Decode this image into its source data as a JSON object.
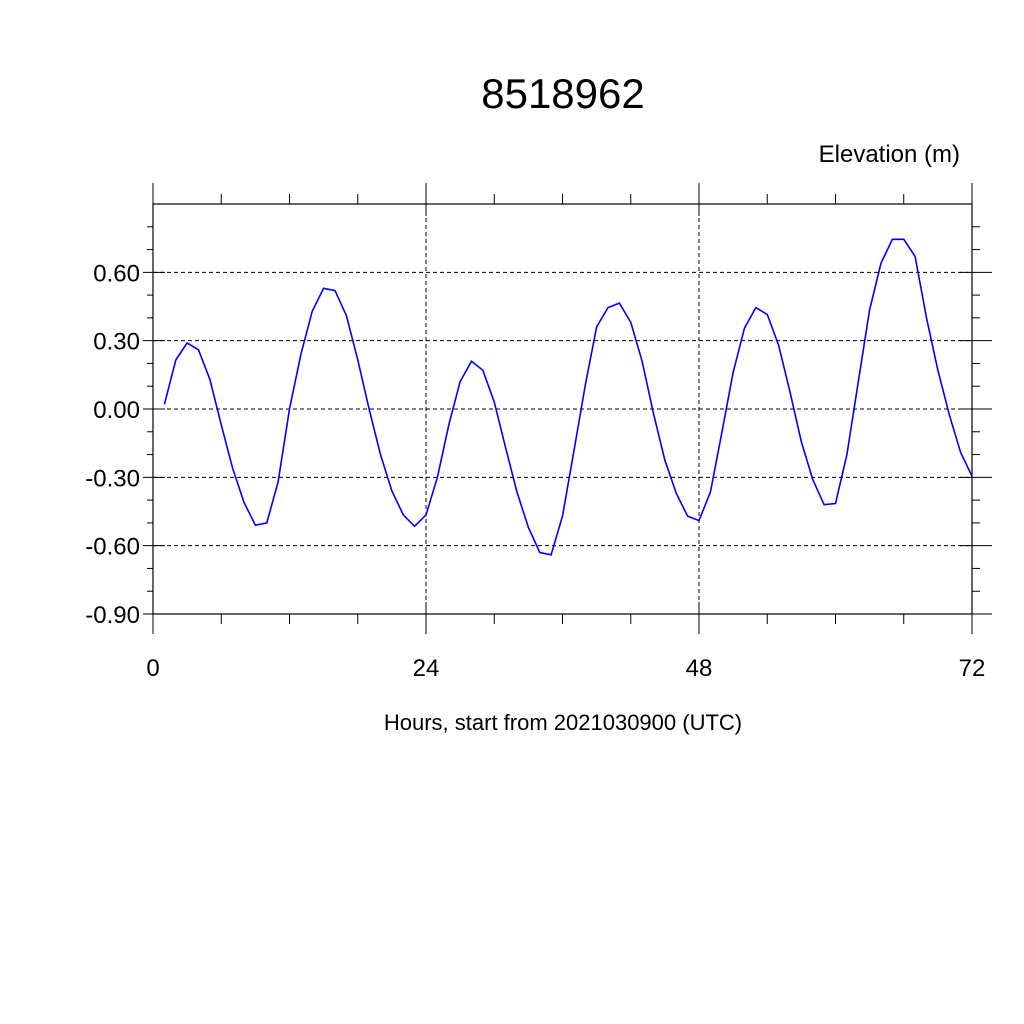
{
  "chart_data": {
    "type": "line",
    "title": "8518962",
    "ylabel": "Elevation (m)",
    "xlabel": "Hours, start from 2021030900 (UTC)",
    "xlim": [
      0,
      72
    ],
    "ylim": [
      -0.9,
      0.9
    ],
    "x_ticks": [
      0,
      24,
      48,
      72
    ],
    "x_tick_labels": [
      "0",
      "24",
      "48",
      "72"
    ],
    "y_ticks": [
      -0.9,
      -0.6,
      -0.3,
      0.0,
      0.3,
      0.6
    ],
    "y_tick_labels": [
      "-0.90",
      "-0.60",
      "-0.30",
      "0.00",
      "0.30",
      "0.60"
    ],
    "grid": true,
    "series": [
      {
        "color": "#0000ff",
        "x": [
          1,
          2,
          3,
          4,
          5,
          6,
          7,
          8,
          9,
          10,
          11,
          12,
          13,
          14,
          15,
          16,
          17,
          18,
          19,
          20,
          21,
          22,
          23,
          24,
          25,
          26,
          27,
          28,
          29,
          30,
          31,
          32,
          33,
          34,
          35,
          36,
          37,
          38,
          39,
          40,
          41,
          42,
          43,
          44,
          45,
          46,
          47,
          48,
          49,
          50,
          51,
          52,
          53,
          54,
          55,
          56,
          57,
          58,
          59,
          60,
          61,
          62,
          63,
          64,
          65,
          66,
          67,
          68,
          69,
          70,
          71,
          72
        ],
        "y": [
          0.02,
          0.215,
          0.29,
          0.26,
          0.13,
          -0.07,
          -0.26,
          -0.41,
          -0.51,
          -0.5,
          -0.32,
          0.0,
          0.24,
          0.43,
          0.53,
          0.52,
          0.41,
          0.215,
          0.0,
          -0.2,
          -0.36,
          -0.465,
          -0.515,
          -0.465,
          -0.3,
          -0.07,
          0.12,
          0.21,
          0.17,
          0.03,
          -0.17,
          -0.365,
          -0.52,
          -0.63,
          -0.64,
          -0.47,
          -0.185,
          0.105,
          0.36,
          0.445,
          0.465,
          0.38,
          0.21,
          -0.02,
          -0.225,
          -0.37,
          -0.47,
          -0.49,
          -0.365,
          -0.105,
          0.16,
          0.355,
          0.445,
          0.415,
          0.28,
          0.075,
          -0.145,
          -0.31,
          -0.42,
          -0.415,
          -0.2,
          0.12,
          0.435,
          0.64,
          0.745,
          0.745,
          0.67,
          0.4,
          0.17,
          -0.025,
          -0.19,
          -0.295
        ]
      }
    ]
  }
}
